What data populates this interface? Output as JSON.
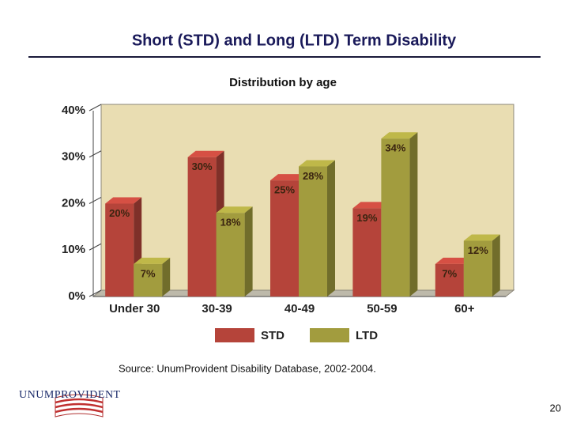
{
  "slide": {
    "title": "Short (STD) and Long (LTD) Term Disability",
    "source": "Source: UnumProvident Disability Database, 2002-2004.",
    "logo": "UNUMPROVIDENT",
    "page_number": 20
  },
  "chart_data": {
    "type": "bar",
    "title": "Distribution by age",
    "categories": [
      "Under 30",
      "30-39",
      "40-49",
      "50-59",
      "60+"
    ],
    "series": [
      {
        "name": "STD",
        "color": "#b5443a",
        "values": [
          20,
          30,
          25,
          19,
          7
        ],
        "value_labels": [
          "20%",
          "30%",
          "25%",
          "19%",
          "7%"
        ]
      },
      {
        "name": "LTD",
        "color": "#a29c3e",
        "values": [
          7,
          18,
          28,
          34,
          12
        ],
        "value_labels": [
          "7%",
          "18%",
          "28%",
          "34%",
          "12%"
        ]
      }
    ],
    "ylim": [
      0,
      40
    ],
    "yticks": [
      {
        "value": 0,
        "label": "0%"
      },
      {
        "value": 10,
        "label": "10%"
      },
      {
        "value": 20,
        "label": "20%"
      },
      {
        "value": 30,
        "label": "30%"
      },
      {
        "value": 40,
        "label": "40%"
      }
    ],
    "grid": false,
    "legend": "bottom"
  }
}
